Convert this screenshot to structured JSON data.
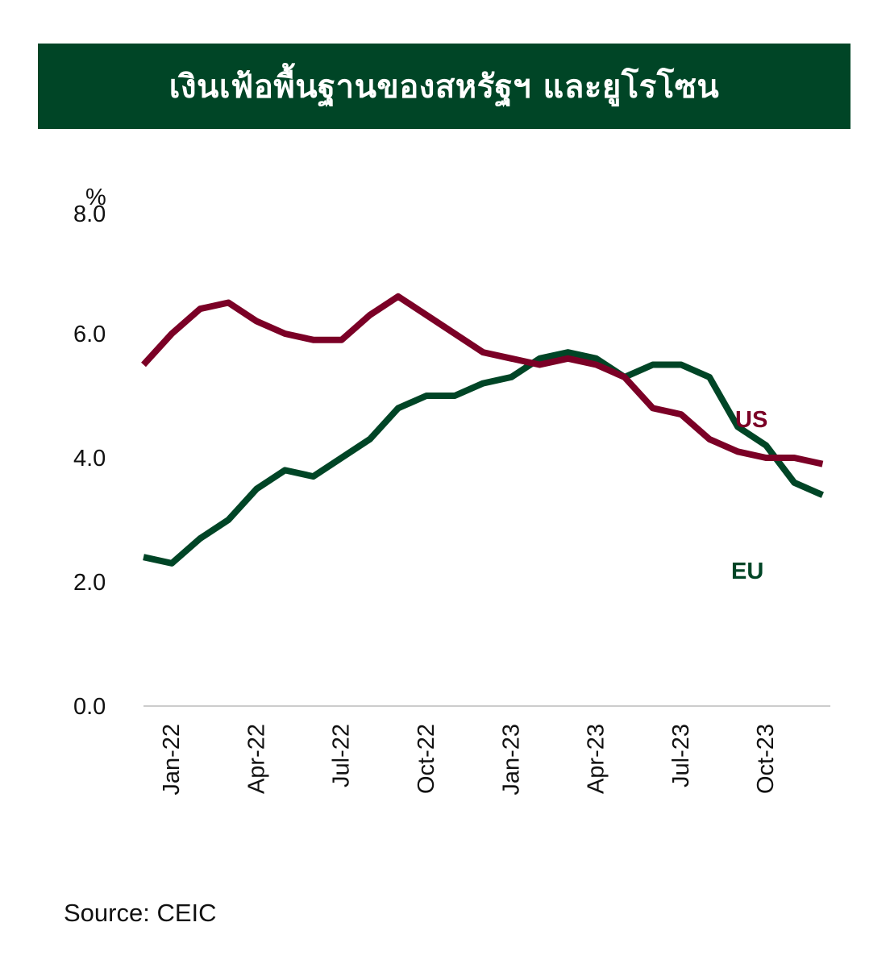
{
  "title": "เงินเฟ้อพื้นฐานของสหรัฐฯ และยูโรโซน",
  "source": "Source: CEIC",
  "colors": {
    "banner": "#004526",
    "us": "#7b0026",
    "eu": "#004526",
    "axis": "#cccccc"
  },
  "chart_data": {
    "type": "line",
    "ylabel": "%",
    "ylim": [
      0,
      8
    ],
    "yticks": [
      "0.0",
      "2.0",
      "4.0",
      "6.0",
      "8.0"
    ],
    "xtick_labels": [
      "Jan-22",
      "Apr-22",
      "Jul-22",
      "Oct-22",
      "Jan-23",
      "Apr-23",
      "Jul-23",
      "Oct-23"
    ],
    "x": [
      "Dec-21",
      "Jan-22",
      "Feb-22",
      "Mar-22",
      "Apr-22",
      "May-22",
      "Jun-22",
      "Jul-22",
      "Aug-22",
      "Sep-22",
      "Oct-22",
      "Nov-22",
      "Dec-22",
      "Jan-23",
      "Feb-23",
      "Mar-23",
      "Apr-23",
      "May-23",
      "Jun-23",
      "Jul-23",
      "Aug-23",
      "Sep-23",
      "Oct-23",
      "Nov-23",
      "Dec-23"
    ],
    "grid": false,
    "legend": "inline labels near line ends",
    "series": [
      {
        "name": "US",
        "values": [
          5.5,
          6.0,
          6.4,
          6.5,
          6.2,
          6.0,
          5.9,
          5.9,
          6.3,
          6.6,
          6.3,
          6.0,
          5.7,
          5.6,
          5.5,
          5.6,
          5.5,
          5.3,
          4.8,
          4.7,
          4.3,
          4.1,
          4.0,
          4.0,
          3.9
        ]
      },
      {
        "name": "EU",
        "values": [
          2.4,
          2.3,
          2.7,
          3.0,
          3.5,
          3.8,
          3.7,
          4.0,
          4.3,
          4.8,
          5.0,
          5.0,
          5.2,
          5.3,
          5.6,
          5.7,
          5.6,
          5.3,
          5.5,
          5.5,
          5.3,
          4.5,
          4.2,
          3.6,
          3.4
        ]
      }
    ]
  }
}
